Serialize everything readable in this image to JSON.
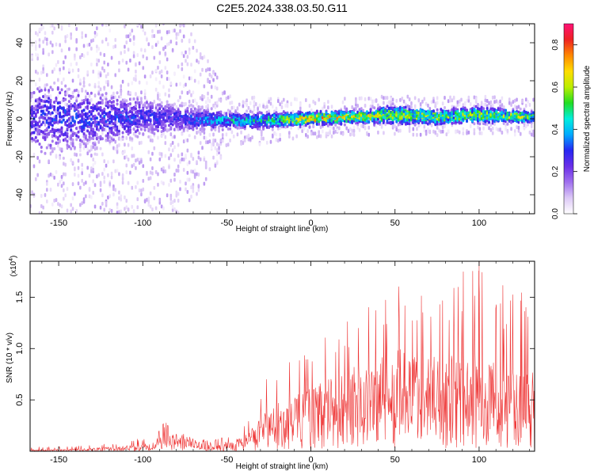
{
  "title": "C2E5.2024.338.03.50.G11",
  "colors": {
    "snr_line": "#ee3333",
    "spectrogram_fill": "#7a3cf0",
    "colormap": [
      "#ffffff",
      "#dcc8f6",
      "#a070ee",
      "#6a2ee8",
      "#2626f2",
      "#00aaff",
      "#00eedd",
      "#22dd22",
      "#bbee00",
      "#ffdd00",
      "#ff8800",
      "#ee2222",
      "#ff1177"
    ]
  },
  "chart_data": [
    {
      "id": "spectrogram",
      "type": "heatmap",
      "xlabel": "Height of straight line (km)",
      "ylabel": "Frequency (Hz)",
      "xlim": [
        -167,
        133
      ],
      "ylim": [
        -50,
        50
      ],
      "xticks": [
        -150,
        -100,
        -50,
        0,
        50,
        100
      ],
      "xtick_labels": [
        "-150",
        "-100",
        "-50",
        "0",
        "50",
        "100"
      ],
      "yticks": [
        -40,
        -20,
        0,
        20,
        40
      ],
      "ytick_labels": [
        "-40",
        "-20",
        "0",
        "20",
        "40"
      ],
      "colorbar": {
        "label": "Normalized spectral amplitude",
        "range": [
          0.0,
          0.9
        ],
        "ticks": [
          0.0,
          0.2,
          0.4,
          0.6,
          0.8
        ],
        "tick_labels": [
          "0.0",
          "0.2",
          "0.4",
          "0.6",
          "0.8"
        ]
      },
      "ridge": {
        "x": [
          -167,
          -150,
          -125,
          -100,
          -75,
          -50,
          -25,
          0,
          25,
          50,
          75,
          100,
          125,
          133
        ],
        "center_hz": [
          0,
          1,
          0,
          1,
          0,
          -1,
          -1,
          0,
          1,
          2,
          1,
          2,
          1,
          1
        ],
        "halfwidth_hz": [
          30,
          28,
          22,
          14,
          10,
          6,
          6,
          5,
          5,
          7,
          6,
          6,
          5,
          4
        ],
        "peak_amplitude": [
          0.28,
          0.3,
          0.3,
          0.3,
          0.3,
          0.45,
          0.5,
          0.75,
          0.65,
          0.6,
          0.6,
          0.6,
          0.6,
          0.55
        ],
        "scatter_halfwidth_hz": [
          50,
          50,
          50,
          50,
          50,
          15,
          12,
          10,
          10,
          10,
          10,
          10,
          10,
          10
        ]
      }
    },
    {
      "id": "snr",
      "type": "line",
      "xlabel": "Height of straight line (km)",
      "ylabel": "SNR (10 * v/v)",
      "multiplier_label": "(x10",
      "multiplier_exponent": "4",
      "xlim": [
        -167,
        133
      ],
      "ylim": [
        0,
        1.85
      ],
      "xticks": [
        -150,
        -100,
        -50,
        0,
        50,
        100
      ],
      "xtick_labels": [
        "-150",
        "-100",
        "-50",
        "0",
        "50",
        "100"
      ],
      "yticks": [
        0.5,
        1.0,
        1.5
      ],
      "ytick_labels": [
        "0.5",
        "1.0",
        "1.5"
      ],
      "envelope": {
        "x": [
          -167,
          -140,
          -115,
          -95,
          -88,
          -75,
          -65,
          -60,
          -50,
          -40,
          -30,
          -28,
          -20,
          -10,
          0,
          10,
          20,
          25,
          40,
          50,
          60,
          75,
          100,
          110,
          125,
          133
        ],
        "mean": [
          0.01,
          0.015,
          0.03,
          0.05,
          0.12,
          0.11,
          0.05,
          0.04,
          0.06,
          0.1,
          0.2,
          0.25,
          0.3,
          0.35,
          0.4,
          0.45,
          0.5,
          0.55,
          0.6,
          0.65,
          0.62,
          0.6,
          0.62,
          0.55,
          0.5,
          0.5
        ],
        "max": [
          0.04,
          0.05,
          0.08,
          0.15,
          0.3,
          0.26,
          0.12,
          0.1,
          0.15,
          0.25,
          0.55,
          0.8,
          0.85,
          0.95,
          1.1,
          1.15,
          1.2,
          1.45,
          1.5,
          1.7,
          1.55,
          1.6,
          1.85,
          1.65,
          1.55,
          1.4
        ]
      },
      "peak": {
        "x": 100,
        "y": 1.85
      }
    }
  ]
}
